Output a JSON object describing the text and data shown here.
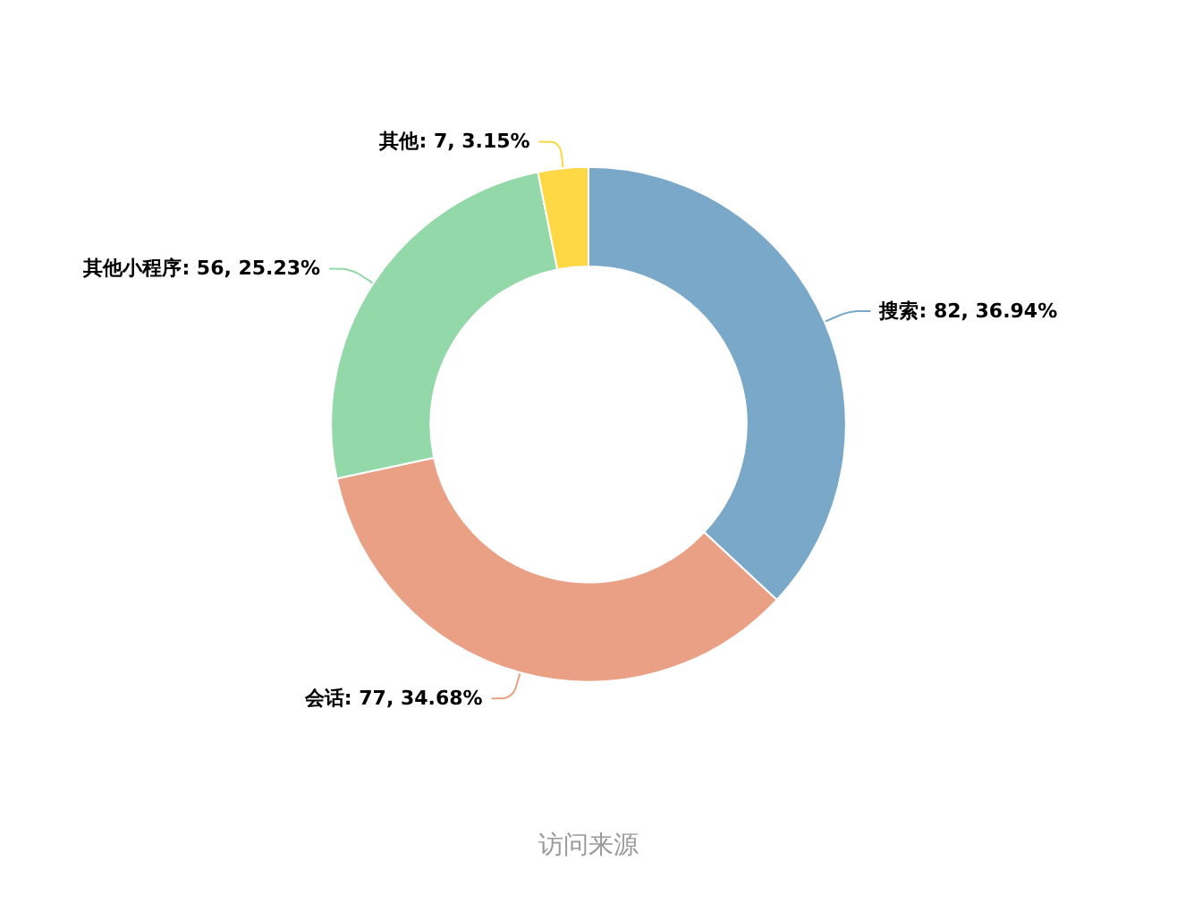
{
  "chart_data": {
    "type": "donut",
    "title": "访问来源",
    "categories": [
      "搜索",
      "会话",
      "其他小程序",
      "其他"
    ],
    "values": [
      82,
      77,
      56,
      7
    ],
    "colors": [
      "#79a8c9",
      "#e9a084",
      "#93d8a8",
      "#fdd844"
    ],
    "value_labels": [
      "82, 36.94%",
      "77, 34.68%",
      "56, 25.23%",
      "7, 3.15%"
    ],
    "legend": false
  }
}
